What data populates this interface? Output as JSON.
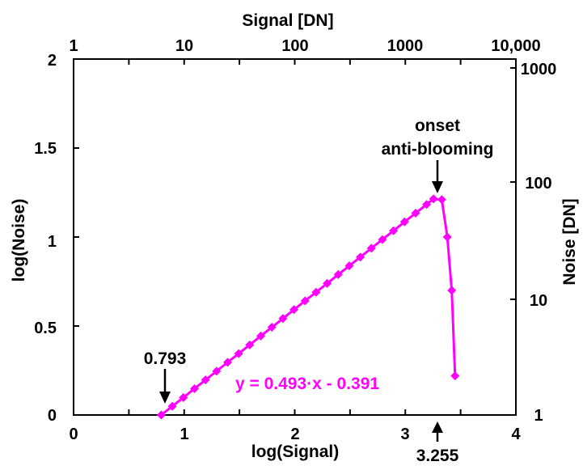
{
  "chart_data": {
    "type": "line",
    "xlabel": "log(Signal)",
    "ylabel": "log(Noise)",
    "top_xlabel": "Signal [DN]",
    "right_ylabel": "Noise [DN]",
    "xlim": [
      0,
      4
    ],
    "ylim": [
      0,
      2
    ],
    "x_ticks": [
      "0",
      "1",
      "2",
      "3",
      "4"
    ],
    "y_ticks": [
      "0",
      "0.5",
      "1",
      "1.5",
      "2"
    ],
    "top_ticks": [
      "1",
      "10",
      "100",
      "1000",
      "10,000"
    ],
    "right_ticks": [
      "1",
      "10",
      "100",
      "1000"
    ],
    "grid": false,
    "series": [
      {
        "color": "#ff00ff",
        "marker": "diamond",
        "x": [
          0.793,
          0.893,
          0.993,
          1.093,
          1.193,
          1.293,
          1.393,
          1.493,
          1.593,
          1.693,
          1.793,
          1.893,
          1.993,
          2.093,
          2.193,
          2.293,
          2.393,
          2.493,
          2.593,
          2.693,
          2.793,
          2.893,
          2.993,
          3.093,
          3.193,
          3.255,
          3.33,
          3.38,
          3.42,
          3.45
        ],
        "y": [
          0.0,
          0.049,
          0.098,
          0.148,
          0.197,
          0.246,
          0.296,
          0.345,
          0.394,
          0.444,
          0.493,
          0.542,
          0.592,
          0.641,
          0.69,
          0.739,
          0.789,
          0.838,
          0.887,
          0.937,
          0.986,
          1.035,
          1.085,
          1.134,
          1.183,
          1.214,
          1.21,
          1.0,
          0.7,
          0.22
        ]
      }
    ],
    "annotations": {
      "equation": "y = 0.493·x - 0.391",
      "start_value": "0.793",
      "onset_line1": "onset",
      "onset_line2": "anti-blooming",
      "onset_value": "3.255"
    }
  }
}
